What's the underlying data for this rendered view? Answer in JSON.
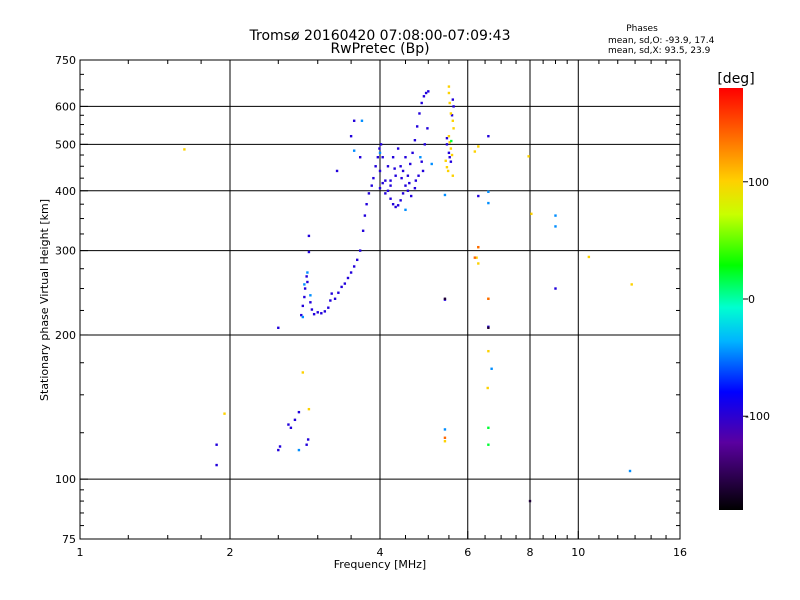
{
  "chart_data": {
    "type": "scatter",
    "title": "Tromsø 20160420 07:08:00-07:09:43",
    "subtitle": "RwPretec (Bp)",
    "xlabel": "Frequency [MHz]",
    "ylabel": "Stationary phase Virtual Height [km]",
    "x_scale": "log",
    "y_scale": "log",
    "xlim": [
      1,
      16
    ],
    "ylim": [
      75,
      750
    ],
    "x_ticks": [
      1,
      2,
      4,
      6,
      8,
      10,
      16
    ],
    "x_tick_labels": [
      "1",
      "2",
      "4",
      "6",
      "8",
      "10",
      "16"
    ],
    "x_grid": [
      2,
      4,
      6,
      8,
      10
    ],
    "y_ticks": [
      75,
      100,
      200,
      300,
      400,
      500,
      600,
      750
    ],
    "y_tick_labels": [
      "75",
      "100",
      "200",
      "300",
      "400",
      "500",
      "600",
      "750"
    ],
    "y_grid": [
      100,
      200,
      300,
      400,
      500,
      600
    ],
    "stats": {
      "heading": "Phases",
      "line_o": "mean, sd,O: -93.9, 17.4",
      "line_x": "mean, sd,X: 93.5, 23.9"
    },
    "colorbar": {
      "label": "[deg]",
      "range": [
        -180,
        180
      ],
      "ticks": [
        100,
        0,
        -100
      ],
      "tick_labels": [
        "100",
        "0",
        "-100"
      ]
    },
    "series": [
      {
        "trace": "o-trace",
        "phase": -95,
        "points": [
          [
            1.88,
            107
          ],
          [
            1.88,
            118
          ],
          [
            2.5,
            115
          ],
          [
            2.52,
            117
          ],
          [
            2.62,
            130
          ],
          [
            2.65,
            128
          ],
          [
            2.7,
            133
          ],
          [
            2.75,
            138
          ],
          [
            2.85,
            118
          ],
          [
            2.87,
            121
          ],
          [
            2.5,
            207
          ],
          [
            2.78,
            220
          ],
          [
            2.8,
            230
          ],
          [
            2.82,
            240
          ],
          [
            2.83,
            250
          ],
          [
            2.85,
            265
          ],
          [
            2.86,
            258
          ],
          [
            2.88,
            322
          ],
          [
            2.88,
            298
          ],
          [
            2.9,
            234
          ],
          [
            2.92,
            226
          ],
          [
            2.95,
            221
          ],
          [
            3.0,
            223
          ],
          [
            3.05,
            222
          ],
          [
            3.1,
            224
          ],
          [
            3.15,
            228
          ],
          [
            3.18,
            236
          ],
          [
            3.2,
            244
          ],
          [
            3.25,
            238
          ],
          [
            3.3,
            245
          ],
          [
            3.35,
            252
          ],
          [
            3.4,
            256
          ],
          [
            3.45,
            263
          ],
          [
            3.5,
            270
          ],
          [
            3.55,
            278
          ],
          [
            3.6,
            287
          ],
          [
            3.65,
            300
          ],
          [
            3.7,
            330
          ],
          [
            3.73,
            355
          ],
          [
            3.76,
            375
          ],
          [
            3.8,
            395
          ],
          [
            3.85,
            410
          ],
          [
            3.88,
            425
          ],
          [
            3.92,
            450
          ],
          [
            3.96,
            470
          ],
          [
            3.99,
            490
          ],
          [
            4.02,
            500
          ],
          [
            4.05,
            470
          ],
          [
            4.1,
            420
          ],
          [
            4.15,
            400
          ],
          [
            4.2,
            385
          ],
          [
            4.25,
            375
          ],
          [
            4.3,
            370
          ],
          [
            4.35,
            373
          ],
          [
            4.4,
            382
          ],
          [
            4.45,
            395
          ],
          [
            4.5,
            410
          ],
          [
            4.55,
            430
          ],
          [
            4.6,
            455
          ],
          [
            4.65,
            480
          ],
          [
            4.7,
            510
          ],
          [
            4.75,
            545
          ],
          [
            4.8,
            580
          ],
          [
            4.85,
            610
          ],
          [
            4.9,
            630
          ],
          [
            4.95,
            640
          ],
          [
            5.0,
            645
          ],
          [
            4.0,
            440
          ],
          [
            4.05,
            415
          ],
          [
            4.1,
            395
          ],
          [
            4.2,
            410
          ],
          [
            4.3,
            430
          ],
          [
            4.4,
            450
          ],
          [
            4.5,
            470
          ],
          [
            4.0,
            405
          ],
          [
            4.15,
            450
          ],
          [
            4.25,
            470
          ],
          [
            4.35,
            490
          ],
          [
            4.45,
            440
          ],
          [
            4.55,
            400
          ],
          [
            4.62,
            390
          ],
          [
            4.7,
            405
          ],
          [
            4.78,
            430
          ],
          [
            4.85,
            460
          ],
          [
            4.92,
            500
          ],
          [
            4.98,
            540
          ],
          [
            3.28,
            440
          ],
          [
            3.55,
            560
          ],
          [
            5.45,
            515
          ],
          [
            5.45,
            500
          ],
          [
            5.5,
            480
          ],
          [
            5.52,
            470
          ],
          [
            5.55,
            460
          ],
          [
            5.58,
            575
          ],
          [
            5.6,
            620
          ],
          [
            5.62,
            600
          ],
          [
            6.3,
            390
          ],
          [
            6.6,
            520
          ],
          [
            9.0,
            250
          ],
          [
            6.6,
            208
          ],
          [
            5.4,
            237
          ],
          [
            3.5,
            520
          ],
          [
            3.65,
            470
          ],
          [
            4.2,
            420
          ],
          [
            4.28,
            445
          ],
          [
            4.42,
            425
          ],
          [
            4.58,
            415
          ],
          [
            4.72,
            420
          ],
          [
            4.88,
            440
          ]
        ]
      },
      {
        "trace": "o-trace-cyan",
        "phase": -45,
        "points": [
          [
            2.8,
            218
          ],
          [
            2.82,
            255
          ],
          [
            2.86,
            270
          ],
          [
            2.9,
            242
          ],
          [
            3.55,
            485
          ],
          [
            3.68,
            560
          ],
          [
            4.5,
            365
          ],
          [
            4.0,
            480
          ],
          [
            5.4,
            392
          ],
          [
            5.4,
            127
          ],
          [
            6.6,
            398
          ],
          [
            6.6,
            377
          ],
          [
            6.7,
            170
          ],
          [
            9.0,
            355
          ],
          [
            9.0,
            337
          ],
          [
            12.7,
            104
          ],
          [
            4.82,
            470
          ],
          [
            5.08,
            455
          ],
          [
            2.75,
            115
          ]
        ]
      },
      {
        "trace": "dark",
        "phase": -160,
        "points": [
          [
            8.0,
            90
          ],
          [
            6.6,
            207
          ],
          [
            5.4,
            238
          ]
        ]
      },
      {
        "trace": "x-trace",
        "phase": 100,
        "points": [
          [
            1.62,
            488
          ],
          [
            1.95,
            137
          ],
          [
            2.8,
            167
          ],
          [
            2.88,
            140
          ],
          [
            5.5,
            660
          ],
          [
            5.5,
            640
          ],
          [
            5.52,
            610
          ],
          [
            5.55,
            580
          ],
          [
            5.6,
            560
          ],
          [
            5.62,
            540
          ],
          [
            5.5,
            520
          ],
          [
            5.52,
            505
          ],
          [
            5.55,
            490
          ],
          [
            5.58,
            475
          ],
          [
            5.42,
            462
          ],
          [
            5.45,
            448
          ],
          [
            5.48,
            440
          ],
          [
            5.6,
            430
          ],
          [
            7.95,
            472
          ],
          [
            8.05,
            358
          ],
          [
            10.5,
            291
          ],
          [
            12.8,
            255
          ],
          [
            5.4,
            120
          ],
          [
            6.3,
            305
          ],
          [
            6.25,
            290
          ],
          [
            6.3,
            282
          ],
          [
            6.6,
            238
          ],
          [
            6.6,
            185
          ],
          [
            6.58,
            155
          ],
          [
            6.2,
            483
          ],
          [
            6.3,
            495
          ]
        ]
      },
      {
        "trace": "x-trace-orange",
        "phase": 140,
        "points": [
          [
            6.2,
            290
          ],
          [
            6.6,
            238
          ],
          [
            6.3,
            305
          ],
          [
            5.4,
            122
          ]
        ]
      },
      {
        "trace": "green",
        "phase": 20,
        "points": [
          [
            6.6,
            128
          ],
          [
            6.6,
            118
          ],
          [
            5.56,
            508
          ]
        ]
      }
    ]
  }
}
